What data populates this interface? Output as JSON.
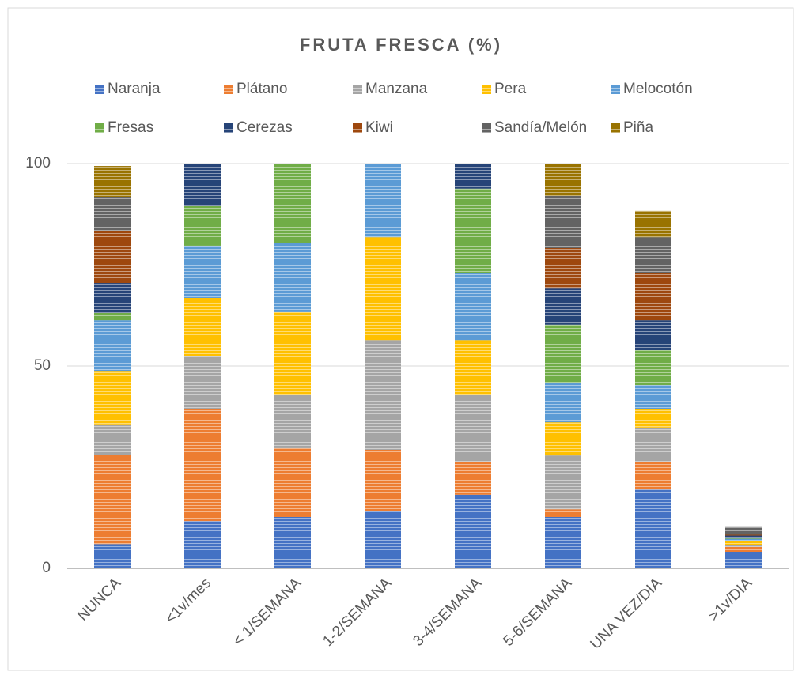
{
  "chart_data": {
    "type": "stacked_bar",
    "title": "FRUTA FRESCA (%)",
    "categories": [
      "NUNCA",
      "<1v/mes",
      "< 1/SEMANA",
      "1-2/SEMANA",
      "3-4/SEMANA",
      "5-6/SEMANA",
      "UNA VEZ/DIA",
      ">1v/DIA"
    ],
    "series": [
      {
        "name": "Naranja",
        "color": "#4472c4",
        "values": [
          6,
          11.7,
          12.7,
          14.1,
          18.2,
          12.7,
          19.5,
          4.1
        ]
      },
      {
        "name": "Plátano",
        "color": "#ed7d31",
        "values": [
          22,
          27.6,
          17,
          15.2,
          8,
          1.9,
          6.7,
          1.2
        ]
      },
      {
        "name": "Manzana",
        "color": "#a5a5a5",
        "values": [
          7.4,
          13.2,
          13.1,
          27.1,
          16.6,
          13.3,
          8.6,
          0.4
        ]
      },
      {
        "name": "Pera",
        "color": "#ffc000",
        "values": [
          13.4,
          14.3,
          20.5,
          25.4,
          13.6,
          8.2,
          4.5,
          1
        ]
      },
      {
        "name": "Melocotón",
        "color": "#5b9bd5",
        "values": [
          12.5,
          12.9,
          17,
          18.2,
          16.5,
          9.6,
          6,
          0.6
        ]
      },
      {
        "name": "Fresas",
        "color": "#70ad47",
        "values": [
          1.8,
          9.9,
          19.7,
          0,
          20.9,
          14.5,
          8.6,
          0.2
        ]
      },
      {
        "name": "Cerezas",
        "color": "#264478",
        "values": [
          7.4,
          10.4,
          0,
          0,
          6.2,
          9.1,
          7.4,
          0.6
        ]
      },
      {
        "name": "Kiwi",
        "color": "#9e480e",
        "values": [
          12.9,
          0,
          0,
          0,
          0,
          9.8,
          11.6,
          0.2
        ]
      },
      {
        "name": "Sandía/Melón",
        "color": "#636363",
        "values": [
          8.4,
          0,
          0,
          0,
          0,
          12.9,
          8.9,
          1.9
        ]
      },
      {
        "name": "Piña",
        "color": "#997300",
        "values": [
          7.6,
          0,
          0,
          0,
          0,
          8,
          6.5,
          0
        ]
      }
    ],
    "ylim": [
      0,
      100
    ],
    "yticks": [
      0,
      50,
      100
    ],
    "grid": true,
    "legend": "top"
  }
}
